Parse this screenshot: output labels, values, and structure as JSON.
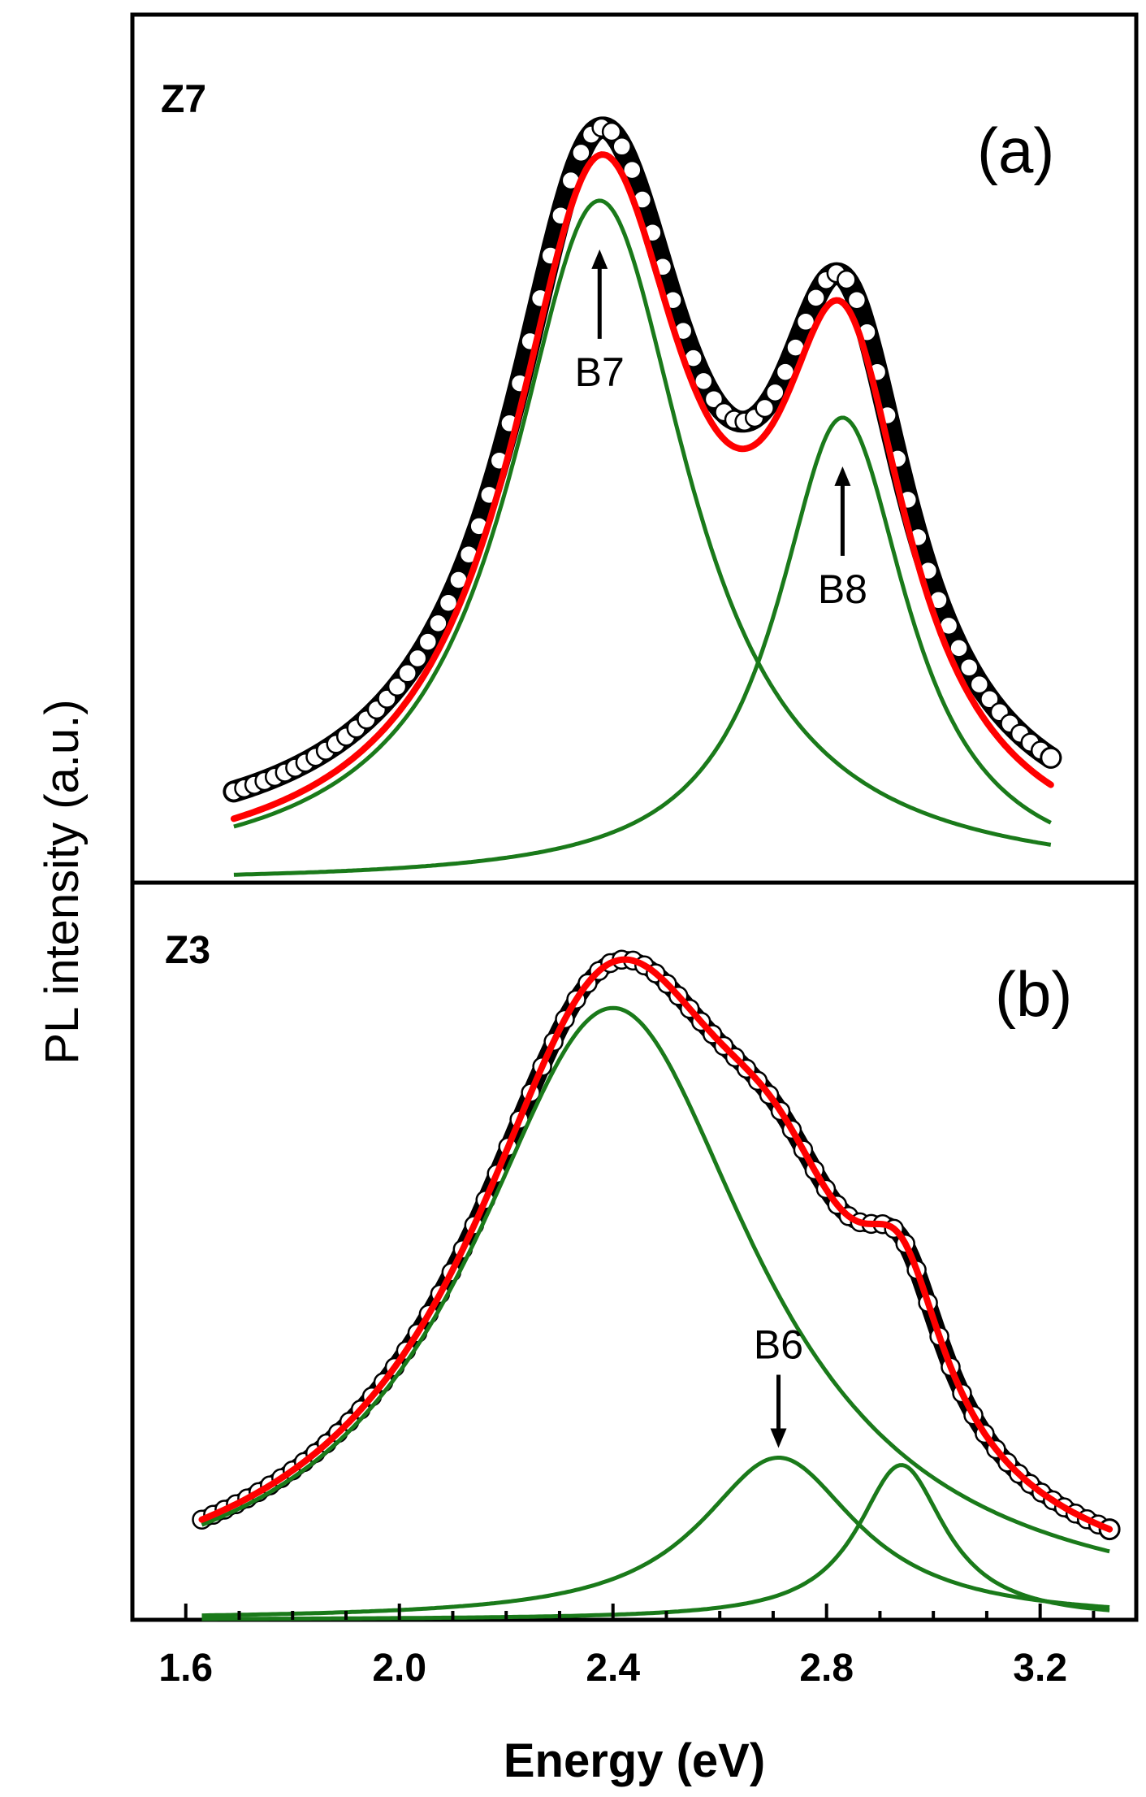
{
  "chart_data": {
    "type": "line",
    "xlabel": "Energy (eV)",
    "ylabel": "PL intensity (a.u.)",
    "xlim": [
      1.5,
      3.38
    ],
    "x_ticks": [
      "1.6",
      "2.0",
      "2.4",
      "2.8",
      "3.2"
    ],
    "colors": {
      "data": "#000000",
      "fit": "#ff0000",
      "component": "#1a7a1a"
    },
    "panels": [
      {
        "id": "a",
        "tag": "(a)",
        "sample": "Z7",
        "ylim": [
          0,
          1.12
        ],
        "x_range": [
          1.69,
          3.22
        ],
        "components": [
          {
            "center": 2.375,
            "amp": 0.88,
            "width": 0.205
          },
          {
            "center": 2.83,
            "amp": 0.6,
            "width": 0.15
          }
        ],
        "annotations": [
          {
            "text": "B7",
            "x": 2.375,
            "direction": "up"
          },
          {
            "text": "B8",
            "x": 2.83,
            "direction": "up"
          }
        ]
      },
      {
        "id": "b",
        "tag": "(b)",
        "sample": "Z3",
        "ylim": [
          0,
          1.0
        ],
        "x_range": [
          1.63,
          3.33
        ],
        "components": [
          {
            "center": 2.4,
            "amp": 0.83,
            "width": 0.33
          },
          {
            "center": 2.71,
            "amp": 0.22,
            "width": 0.18
          },
          {
            "center": 2.94,
            "amp": 0.21,
            "width": 0.1
          }
        ],
        "annotations": [
          {
            "text": "B6",
            "x": 2.71,
            "direction": "down"
          }
        ]
      }
    ]
  }
}
